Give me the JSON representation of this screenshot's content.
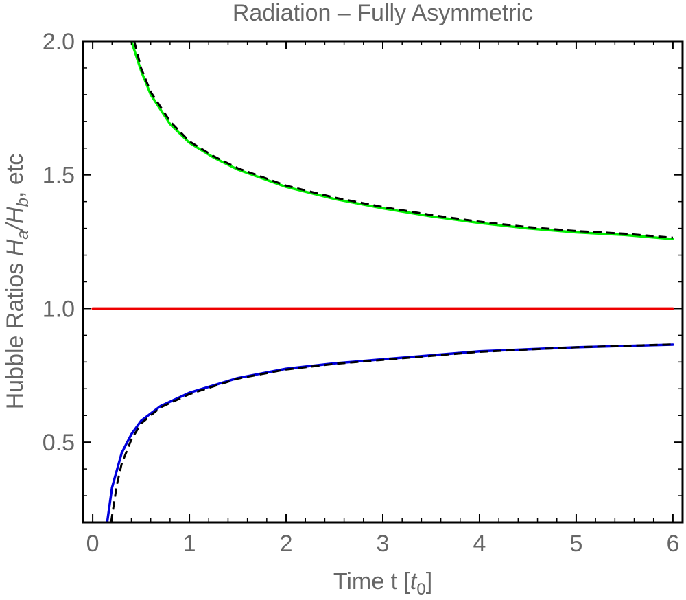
{
  "chart_data": {
    "type": "line",
    "title": "Radiation – Fully Asymmetric",
    "xlabel": "Time  t [t0]",
    "xlabel_parts": {
      "prefix": "Time  t [",
      "var": "t",
      "sub": "0",
      "suffix": "]"
    },
    "ylabel": "Hubble Ratios  Ha/Hb, etc",
    "ylabel_parts": {
      "prefix": "Hubble Ratios  ",
      "var1": "H",
      "sub1": "a",
      "slash": "/",
      "var2": "H",
      "sub2": "b",
      "suffix": ", etc"
    },
    "xlim": [
      -0.1,
      6.1
    ],
    "ylim": [
      0.2,
      2.0
    ],
    "xticks": [
      0,
      1,
      2,
      3,
      4,
      5,
      6
    ],
    "xtick_labels": [
      "0",
      "1",
      "2",
      "3",
      "4",
      "5",
      "6"
    ],
    "yticks": [
      0.5,
      1.0,
      1.5,
      2.0
    ],
    "ytick_labels": [
      "0.5",
      "1.0",
      "1.5",
      "2.0"
    ],
    "grid": false,
    "legend": "none",
    "series": [
      {
        "color": "#00ee00",
        "style": "solid",
        "x": [
          0.4,
          0.5,
          0.6,
          0.8,
          1.0,
          1.25,
          1.5,
          2.0,
          2.5,
          3.0,
          3.5,
          4.0,
          4.5,
          5.0,
          5.5,
          6.0
        ],
        "y": [
          2.0,
          1.89,
          1.8,
          1.69,
          1.62,
          1.565,
          1.52,
          1.455,
          1.41,
          1.375,
          1.345,
          1.32,
          1.3,
          1.285,
          1.275,
          1.26
        ]
      },
      {
        "color": "#000000",
        "style": "dashed",
        "x": [
          0.43,
          0.5,
          0.6,
          0.8,
          1.0,
          1.25,
          1.5,
          2.0,
          2.5,
          3.0,
          3.5,
          4.0,
          4.5,
          5.0,
          5.5,
          6.0
        ],
        "y": [
          2.0,
          1.9,
          1.81,
          1.7,
          1.625,
          1.57,
          1.525,
          1.46,
          1.415,
          1.38,
          1.35,
          1.325,
          1.305,
          1.29,
          1.28,
          1.265
        ]
      },
      {
        "color": "#ee0000",
        "style": "solid",
        "x": [
          0.0,
          6.0
        ],
        "y": [
          1.0,
          1.0
        ]
      },
      {
        "color": "#0000dd",
        "style": "solid",
        "x": [
          0.15,
          0.2,
          0.3,
          0.4,
          0.5,
          0.7,
          1.0,
          1.5,
          2.0,
          2.5,
          3.0,
          4.0,
          5.0,
          6.0
        ],
        "y": [
          0.2,
          0.33,
          0.46,
          0.53,
          0.58,
          0.635,
          0.685,
          0.74,
          0.775,
          0.795,
          0.81,
          0.84,
          0.855,
          0.865
        ]
      },
      {
        "color": "#000000",
        "style": "dashed",
        "x": [
          0.19,
          0.25,
          0.3,
          0.4,
          0.5,
          0.7,
          1.0,
          1.5,
          2.0,
          2.5,
          3.0,
          4.0,
          5.0,
          6.0
        ],
        "y": [
          0.2,
          0.34,
          0.42,
          0.51,
          0.57,
          0.63,
          0.68,
          0.738,
          0.772,
          0.793,
          0.808,
          0.838,
          0.855,
          0.866
        ]
      }
    ]
  }
}
